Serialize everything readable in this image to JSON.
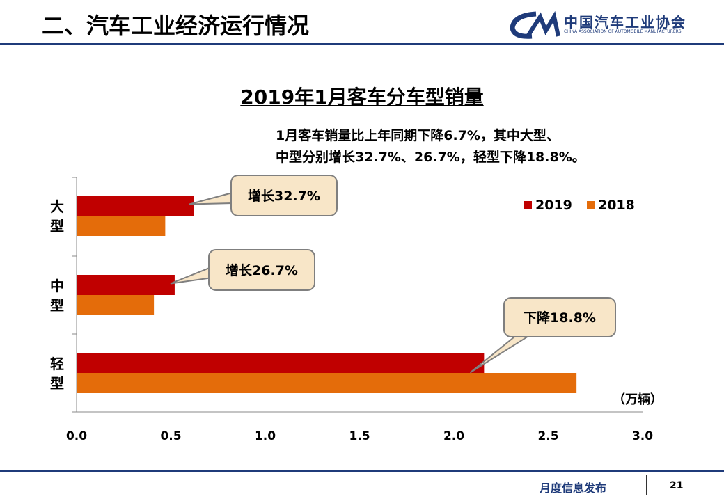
{
  "header": {
    "section_title": "二、汽车工业经济运行情况",
    "logo_cn": "中国汽车工业协会",
    "logo_en": "CHINA ASSOCIATION OF AUTOMOBILE MANUFACTURERS",
    "logo_mark": "CAM"
  },
  "summary": {
    "line1": "1月客车销量比上年同期下降6.7%，其中大型、",
    "line2": "中型分别增长32.7%、26.7%，轻型下降18.8%。"
  },
  "colors": {
    "series2019": "#c00000",
    "series2018": "#e46c0a",
    "brand": "#1f3b7a"
  },
  "chart_data": {
    "type": "bar",
    "orientation": "horizontal",
    "title": "2019年1月客车分车型销量",
    "categories": [
      "大型",
      "中型",
      "轻型"
    ],
    "category_labels": [
      [
        "大",
        "型"
      ],
      [
        "中",
        "型"
      ],
      [
        "轻",
        "型"
      ]
    ],
    "series": [
      {
        "name": "2019",
        "values": [
          0.62,
          0.52,
          2.16
        ]
      },
      {
        "name": "2018",
        "values": [
          0.47,
          0.41,
          2.65
        ]
      }
    ],
    "xlim": [
      0.0,
      3.0
    ],
    "xticks": [
      "0.0",
      "0.5",
      "1.0",
      "1.5",
      "2.0",
      "2.5",
      "3.0"
    ],
    "xlabel": "（万辆）",
    "legend": [
      "2019",
      "2018"
    ],
    "legend_position": "top-right",
    "annotations": [
      "增长32.7%",
      "增长26.7%",
      "下降18.8%"
    ]
  },
  "footer": {
    "publication": "月度信息发布",
    "page_number": "21"
  }
}
